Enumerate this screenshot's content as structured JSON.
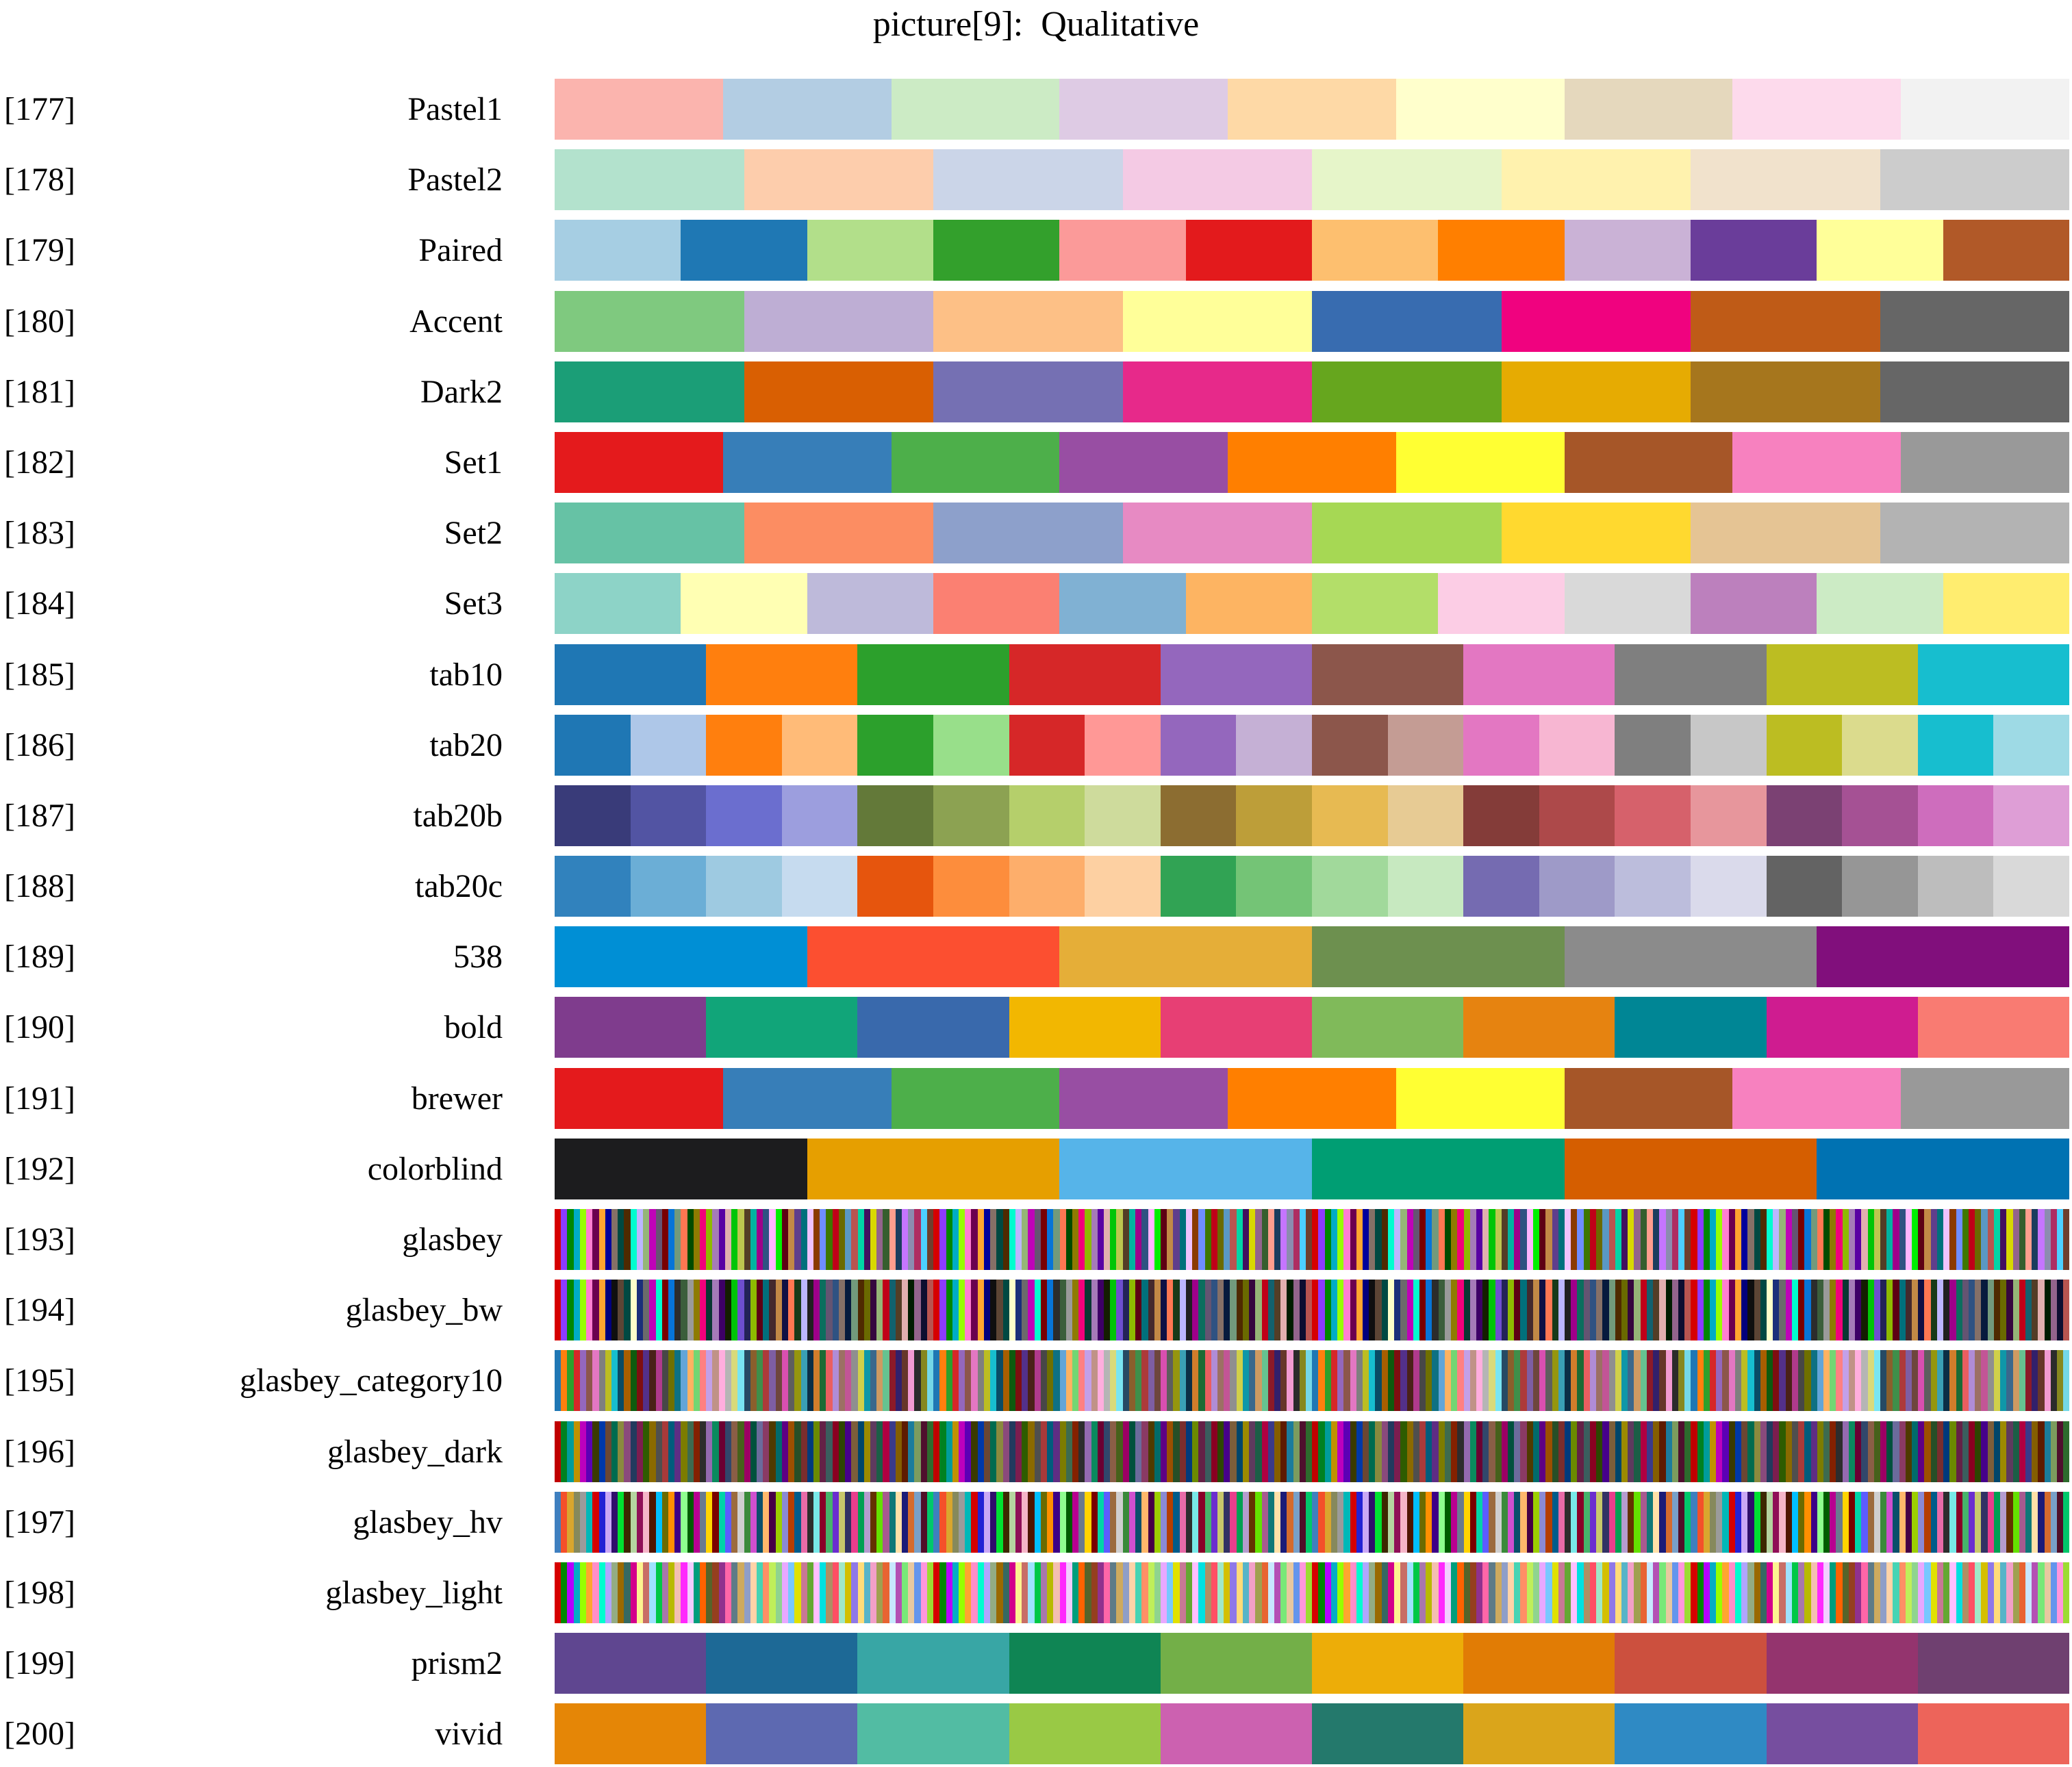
{
  "title": "picture[9]:  Qualitative",
  "chart_data": {
    "type": "table",
    "title": "picture[9]:  Qualitative",
    "description": "Qualitative colormap swatch chart, rows 177-200, each row shows a named palette as equal-width color blocks",
    "rows": [
      {
        "index_label": "[177]",
        "name": "Pastel1",
        "repeat": 1,
        "colors": [
          "#fbb4ae",
          "#b3cde3",
          "#ccebc5",
          "#decbe4",
          "#fed9a6",
          "#ffffcc",
          "#e5d8bd",
          "#fddaec",
          "#f2f2f2"
        ]
      },
      {
        "index_label": "[178]",
        "name": "Pastel2",
        "repeat": 1,
        "colors": [
          "#b3e2cd",
          "#fdcdac",
          "#cbd5e8",
          "#f4cae4",
          "#e6f5c9",
          "#fff2ae",
          "#f1e2cc",
          "#cccccc"
        ]
      },
      {
        "index_label": "[179]",
        "name": "Paired",
        "repeat": 1,
        "colors": [
          "#a6cee3",
          "#1f78b4",
          "#b2df8a",
          "#33a02c",
          "#fb9a99",
          "#e31a1c",
          "#fdbf6f",
          "#ff7f00",
          "#cab2d6",
          "#6a3d9a",
          "#ffff99",
          "#b15928"
        ]
      },
      {
        "index_label": "[180]",
        "name": "Accent",
        "repeat": 1,
        "colors": [
          "#7fc97f",
          "#beaed4",
          "#fdc086",
          "#ffff99",
          "#386cb0",
          "#f0027f",
          "#bf5b17",
          "#666666"
        ]
      },
      {
        "index_label": "[181]",
        "name": "Dark2",
        "repeat": 1,
        "colors": [
          "#1b9e77",
          "#d95f02",
          "#7570b3",
          "#e7298a",
          "#66a61e",
          "#e6ab02",
          "#a6761d",
          "#666666"
        ]
      },
      {
        "index_label": "[182]",
        "name": "Set1",
        "repeat": 1,
        "colors": [
          "#e41a1c",
          "#377eb8",
          "#4daf4a",
          "#984ea3",
          "#ff7f00",
          "#ffff33",
          "#a65628",
          "#f781bf",
          "#999999"
        ]
      },
      {
        "index_label": "[183]",
        "name": "Set2",
        "repeat": 1,
        "colors": [
          "#66c2a5",
          "#fc8d62",
          "#8da0cb",
          "#e78ac3",
          "#a6d854",
          "#ffd92f",
          "#e5c494",
          "#b3b3b3"
        ]
      },
      {
        "index_label": "[184]",
        "name": "Set3",
        "repeat": 1,
        "colors": [
          "#8dd3c7",
          "#ffffb3",
          "#bebada",
          "#fb8072",
          "#80b1d3",
          "#fdb462",
          "#b3de69",
          "#fccde5",
          "#d9d9d9",
          "#bc80bd",
          "#ccebc5",
          "#ffed6f"
        ]
      },
      {
        "index_label": "[185]",
        "name": "tab10",
        "repeat": 1,
        "colors": [
          "#1f77b4",
          "#ff7f0e",
          "#2ca02c",
          "#d62728",
          "#9467bd",
          "#8c564b",
          "#e377c2",
          "#7f7f7f",
          "#bcbd22",
          "#17becf"
        ]
      },
      {
        "index_label": "[186]",
        "name": "tab20",
        "repeat": 1,
        "colors": [
          "#1f77b4",
          "#aec7e8",
          "#ff7f0e",
          "#ffbb78",
          "#2ca02c",
          "#98df8a",
          "#d62728",
          "#ff9896",
          "#9467bd",
          "#c5b0d5",
          "#8c564b",
          "#c49c94",
          "#e377c2",
          "#f7b6d2",
          "#7f7f7f",
          "#c7c7c7",
          "#bcbd22",
          "#dbdb8d",
          "#17becf",
          "#9edae5"
        ]
      },
      {
        "index_label": "[187]",
        "name": "tab20b",
        "repeat": 1,
        "colors": [
          "#393b79",
          "#5254a3",
          "#6b6ecf",
          "#9c9ede",
          "#637939",
          "#8ca252",
          "#b5cf6b",
          "#cedb9c",
          "#8c6d31",
          "#bd9e39",
          "#e7ba52",
          "#e7cb94",
          "#843c39",
          "#ad494a",
          "#d6616b",
          "#e7969c",
          "#7b4173",
          "#a55194",
          "#ce6dbd",
          "#de9ed6"
        ]
      },
      {
        "index_label": "[188]",
        "name": "tab20c",
        "repeat": 1,
        "colors": [
          "#3182bd",
          "#6baed6",
          "#9ecae1",
          "#c6dbef",
          "#e6550d",
          "#fd8d3c",
          "#fdae6b",
          "#fdd0a2",
          "#31a354",
          "#74c476",
          "#a1d99b",
          "#c7e9c0",
          "#756bb1",
          "#9e9ac8",
          "#bcbddc",
          "#dadaeb",
          "#636363",
          "#969696",
          "#bdbdbd",
          "#d9d9d9"
        ]
      },
      {
        "index_label": "[189]",
        "name": "538",
        "repeat": 1,
        "colors": [
          "#008fd5",
          "#fc4f30",
          "#e5ae38",
          "#6d904f",
          "#8b8b8b",
          "#810f7c"
        ]
      },
      {
        "index_label": "[190]",
        "name": "bold",
        "repeat": 1,
        "colors": [
          "#7f3c8d",
          "#11a579",
          "#3969ac",
          "#f2b701",
          "#e73f74",
          "#80ba5a",
          "#e68310",
          "#008695",
          "#cf1c90",
          "#f97b72"
        ]
      },
      {
        "index_label": "[191]",
        "name": "brewer",
        "repeat": 1,
        "colors": [
          "#e41a1c",
          "#377eb8",
          "#4daf4a",
          "#984ea3",
          "#ff7f00",
          "#ffff33",
          "#a65628",
          "#f781bf",
          "#999999"
        ]
      },
      {
        "index_label": "[192]",
        "name": "colorblind",
        "repeat": 1,
        "colors": [
          "#1c1c1e",
          "#e69f00",
          "#56b4e9",
          "#009e73",
          "#d55e00",
          "#0072b2"
        ]
      },
      {
        "index_label": "[193]",
        "name": "glasbey",
        "repeat": 4,
        "colors": [
          "#d60000",
          "#8c3bff",
          "#018700",
          "#00acc6",
          "#97ff00",
          "#ff7ed1",
          "#6b004f",
          "#ffa52f",
          "#00009c",
          "#857067",
          "#004942",
          "#4f2a00",
          "#00fdcf",
          "#bcb6ff",
          "#95b577",
          "#bf03b8",
          "#645472",
          "#790000",
          "#0774d8",
          "#729a7c",
          "#ff7752",
          "#004b00",
          "#8e7b01",
          "#f2007b",
          "#8eba00",
          "#a57bb8",
          "#5901a3",
          "#e2afaf",
          "#00c507",
          "#bdc64f",
          "#533d26",
          "#00b3a0",
          "#9e008a",
          "#2f5282",
          "#ffb5ff",
          "#00ef00",
          "#5d0014",
          "#c28946",
          "#5f3e8c",
          "#00707c",
          "#f0c3ff",
          "#8b3a00",
          "#6f8dff",
          "#3e7700",
          "#c00018",
          "#6a6a00",
          "#5a98c4",
          "#b85450",
          "#01d4a6",
          "#42105f",
          "#d8d800",
          "#93648c",
          "#365e2e",
          "#ff9e8e",
          "#1b3d5e",
          "#c575ff",
          "#8c8cb0",
          "#ae2d62",
          "#4cd0ff",
          "#6e3f2d"
        ]
      },
      {
        "index_label": "[194]",
        "name": "glasbey_bw",
        "repeat": 4,
        "colors": [
          "#d60000",
          "#8c3bff",
          "#018700",
          "#00acc6",
          "#97ff00",
          "#ff7ed1",
          "#6b004f",
          "#ffa52f",
          "#02007d",
          "#0f0f0f",
          "#5c4535",
          "#004942",
          "#fdffca",
          "#1b2f7a",
          "#6b6b6b",
          "#bf03b8",
          "#00fdcf",
          "#790000",
          "#0774d8",
          "#2c2c2c",
          "#3b5e3b",
          "#9a9a9a",
          "#8e7b01",
          "#f2007b",
          "#0a3732",
          "#a57bb8",
          "#3d0066",
          "#141e00",
          "#00c507",
          "#6e4fcf",
          "#232358",
          "#8eba00",
          "#5d0014",
          "#00707c",
          "#44292d",
          "#c28946",
          "#101044",
          "#ff7752",
          "#183a18",
          "#bcb6ff",
          "#202020",
          "#9e008a",
          "#0b6e5e",
          "#645472",
          "#2f5282",
          "#857067",
          "#061a3d",
          "#729a7c",
          "#4f2a00",
          "#6a6a00",
          "#35063e",
          "#95b577",
          "#c00018",
          "#12616e",
          "#533d26",
          "#e2afaf",
          "#001c00",
          "#93648c",
          "#0d0d30",
          "#b85450"
        ]
      },
      {
        "index_label": "[195]",
        "name": "glasbey_category10",
        "repeat": 4,
        "colors": [
          "#1f77b4",
          "#ff7f0e",
          "#2ca02c",
          "#d62728",
          "#9467bd",
          "#8c564b",
          "#e377c2",
          "#7f7f7f",
          "#bcbd22",
          "#17becf",
          "#094b65",
          "#a85e00",
          "#0e5b0e",
          "#7f0e10",
          "#53308a",
          "#4a2118",
          "#b03a8c",
          "#474747",
          "#6f7000",
          "#0e7183",
          "#63a5d8",
          "#ffb262",
          "#73d673",
          "#ff8082",
          "#c3a0e8",
          "#c09287",
          "#ffaede",
          "#b5b5b5",
          "#d9da7a",
          "#79e5f2",
          "#264a64",
          "#8a5f2c",
          "#3f8f4a",
          "#ad3a3a",
          "#7e5ea3",
          "#6e463d",
          "#d94fb0",
          "#5e5e5e",
          "#95960e",
          "#3aa0b5",
          "#0b2e46",
          "#d17d2b",
          "#1c6b34",
          "#ea5e60",
          "#b08cd6",
          "#9c7064",
          "#c25596",
          "#8f8f8f",
          "#d0d04a",
          "#0f97a8",
          "#3b688c",
          "#ce9a62",
          "#66c290",
          "#8c1a28",
          "#32206b",
          "#66362a",
          "#f29bd2",
          "#2b2b2b",
          "#86871f",
          "#74d8e8"
        ]
      },
      {
        "index_label": "[196]",
        "name": "glasbey_dark",
        "repeat": 4,
        "colors": [
          "#c00000",
          "#008121",
          "#009c9c",
          "#c09200",
          "#bd00bd",
          "#5c00b5",
          "#3a3a00",
          "#0038a8",
          "#6b4632",
          "#006b4f",
          "#8a8a3e",
          "#8a4a7c",
          "#223a5e",
          "#7c1d4f",
          "#2e5c00",
          "#8a6a00",
          "#4f4f4f",
          "#a83a3a",
          "#005c7c",
          "#5e2d84",
          "#7c7c00",
          "#3d6b4f",
          "#842100",
          "#2d2d2d",
          "#946ab0",
          "#0a8a5e",
          "#6b0032",
          "#31476b",
          "#8a5e46",
          "#46611b",
          "#9c0064",
          "#00513d",
          "#6b6b9c",
          "#8a3a64",
          "#4f3a00",
          "#006b6b",
          "#5e0084",
          "#9c4f00",
          "#274f27",
          "#7a2d2d",
          "#003a7c",
          "#6b8a00",
          "#642146",
          "#3a5e5e",
          "#8a0021",
          "#2d4600",
          "#46008a",
          "#7c5e3a",
          "#00466b",
          "#9c8a00",
          "#5e3a5e",
          "#1b5e46",
          "#b00041",
          "#3a3a8a",
          "#845e00",
          "#5e1b00",
          "#1b7c9c",
          "#7c9c5e",
          "#4f0f2d",
          "#2d6b2d"
        ]
      },
      {
        "index_label": "[197]",
        "name": "glasbey_hv",
        "repeat": 4,
        "colors": [
          "#3f7fbf",
          "#f4502a",
          "#d9a62e",
          "#86895c",
          "#9b9b9b",
          "#00b8b8",
          "#d40000",
          "#2222d4",
          "#caa8f5",
          "#2f0f6b",
          "#00e132",
          "#3d2800",
          "#b5d4a0",
          "#8f0f57",
          "#f5b5c8",
          "#4f1500",
          "#00bfff",
          "#6b6b00",
          "#ff8f00",
          "#3d0087",
          "#8fff8f",
          "#005c00",
          "#b80090",
          "#697a8f",
          "#ffd400",
          "#7a0000",
          "#00d4a8",
          "#5c5cff",
          "#9c6b3d",
          "#cfcfcf",
          "#3a8a3a",
          "#cf4fcf",
          "#0a4f6b",
          "#ffb86b",
          "#460046",
          "#9ccf00",
          "#8a8ad4",
          "#b53e00",
          "#005c8a",
          "#e86ba8",
          "#2d2d2d",
          "#78e8e8",
          "#8a0028",
          "#46b46b",
          "#6b2dcf",
          "#c8c86b",
          "#323264",
          "#e83e8c",
          "#00a053",
          "#b59ccf",
          "#643200",
          "#64e100",
          "#a85a8f",
          "#0f7878",
          "#ffe1a8",
          "#1b1b78",
          "#d46b2d",
          "#78a0c8",
          "#500f28",
          "#00c86b"
        ]
      },
      {
        "index_label": "[198]",
        "name": "glasbey_light",
        "repeat": 4,
        "colors": [
          "#d60000",
          "#018700",
          "#b500ff",
          "#05acc6",
          "#97ff00",
          "#ffa52f",
          "#ff8ec8",
          "#00fdcf",
          "#afa5ff",
          "#93ac83",
          "#9a6900",
          "#366962",
          "#d3008c",
          "#fdf490",
          "#c86e66",
          "#9ee2ff",
          "#00c846",
          "#a877ac",
          "#b8ba01",
          "#f4bfb1",
          "#ff28fd",
          "#f2cdff",
          "#009e7c",
          "#ff6200",
          "#56642a",
          "#953f1f",
          "#90318e",
          "#ff66a8",
          "#5e7b87",
          "#ceaa5e",
          "#8f9ec8",
          "#ffd3a8",
          "#46d4b4",
          "#ff8f66",
          "#bfef5a",
          "#8fd48f",
          "#e8a8ff",
          "#78c8ff",
          "#e1e100",
          "#c87895",
          "#64a832",
          "#ffbfff",
          "#00e1e1",
          "#af8f64",
          "#ff4f64",
          "#a0e8c8",
          "#d4bf00",
          "#8f78e8",
          "#ffdc78",
          "#56b4c8",
          "#f2a0c8",
          "#a0a050",
          "#e86432",
          "#c8e8ff",
          "#b450b4",
          "#78e878",
          "#e8c8a0",
          "#6495ed",
          "#ff96dc",
          "#9cdc32"
        ]
      },
      {
        "index_label": "[199]",
        "name": "prism2",
        "repeat": 1,
        "colors": [
          "#5f4690",
          "#1d6996",
          "#38a6a5",
          "#0f8554",
          "#73af48",
          "#edad08",
          "#e17c05",
          "#cc503e",
          "#94346e",
          "#6f4070"
        ]
      },
      {
        "index_label": "[200]",
        "name": "vivid",
        "repeat": 1,
        "colors": [
          "#e58606",
          "#5d69b1",
          "#52bca3",
          "#99c945",
          "#cc61b0",
          "#24796c",
          "#daa51b",
          "#2f8ac4",
          "#764e9f",
          "#ed645a"
        ]
      }
    ]
  }
}
